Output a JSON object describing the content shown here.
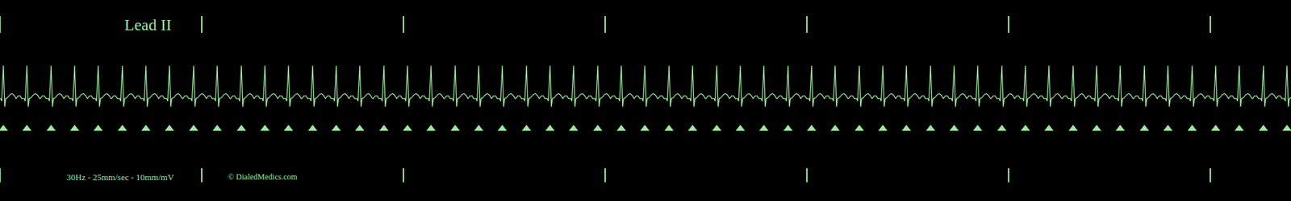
{
  "chart_data": {
    "type": "ecg",
    "lead": "Lead II",
    "footer": "30Hz - 25mm/sec - 10mm/mV",
    "credit": "© DialedMedics.com",
    "color": "#9be89b",
    "marker": "triangle-up",
    "tick_labels": false,
    "grid": false,
    "xlim": [
      0,
      19.2
    ],
    "ylim": [
      -3.12,
      3.0
    ],
    "xticks": [
      0,
      3,
      6,
      9,
      12,
      15,
      18
    ],
    "beats": [
      0.05,
      0.4,
      0.76,
      1.11,
      1.46,
      1.82,
      2.17,
      2.52,
      2.88,
      3.23,
      3.59,
      3.94,
      4.29,
      4.65,
      5.0,
      5.35,
      5.71,
      6.06,
      6.41,
      6.77,
      7.12,
      7.47,
      7.83,
      8.18,
      8.53,
      8.89,
      9.24,
      9.59,
      9.95,
      10.3,
      10.66,
      11.01,
      11.36,
      11.72,
      12.07,
      12.42,
      12.78,
      13.13,
      13.48,
      13.84,
      14.19,
      14.54,
      14.9,
      15.25,
      15.6,
      15.96,
      16.31,
      16.66,
      17.02,
      17.37,
      17.73,
      18.08,
      18.43,
      18.79,
      19.14
    ],
    "beat_template": {
      "t": [
        -0.16,
        -0.13,
        -0.1,
        -0.075,
        -0.04,
        -0.025,
        0,
        0.02,
        0.035,
        0.06,
        0.1,
        0.13,
        0.16,
        0.19
      ],
      "mv": [
        0,
        0.08,
        0.08,
        0,
        0,
        -0.08,
        1.0,
        -0.25,
        0,
        0.02,
        0.12,
        0.15,
        0.1,
        0
      ]
    }
  }
}
